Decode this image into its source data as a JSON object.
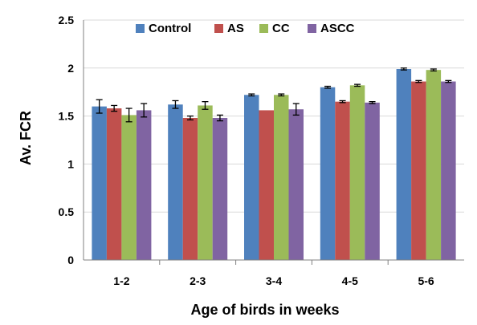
{
  "chart_data": {
    "type": "bar",
    "title": "",
    "xlabel": "Age of birds in weeks",
    "ylabel": "Av. FCR",
    "ylim": [
      0,
      2.5
    ],
    "yticks": [
      0,
      0.5,
      1,
      1.5,
      2,
      2.5
    ],
    "ytick_labels": [
      "0",
      "0.5",
      "1",
      "1.5",
      "2",
      "2.5"
    ],
    "grid": "horizontal major gridlines",
    "legend_position": "top",
    "error_bars": true,
    "categories": [
      "1-2",
      "2-3",
      "3-4",
      "4-5",
      "5-6"
    ],
    "series": [
      {
        "name": "Control",
        "color": "#4F81BD",
        "values": [
          1.6,
          1.62,
          1.72,
          1.8,
          1.99
        ],
        "errors": [
          0.07,
          0.04,
          0.01,
          0.01,
          0.01
        ]
      },
      {
        "name": "AS",
        "color": "#C0504D",
        "values": [
          1.58,
          1.48,
          1.56,
          1.65,
          1.86
        ],
        "errors": [
          0.03,
          0.02,
          0.0,
          0.01,
          0.01
        ]
      },
      {
        "name": "CC",
        "color": "#9BBB59",
        "values": [
          1.51,
          1.61,
          1.72,
          1.82,
          1.98
        ],
        "errors": [
          0.07,
          0.04,
          0.01,
          0.01,
          0.01
        ]
      },
      {
        "name": "ASCC",
        "color": "#8064A2",
        "values": [
          1.56,
          1.48,
          1.57,
          1.64,
          1.86
        ],
        "errors": [
          0.07,
          0.03,
          0.06,
          0.01,
          0.01
        ]
      }
    ]
  }
}
